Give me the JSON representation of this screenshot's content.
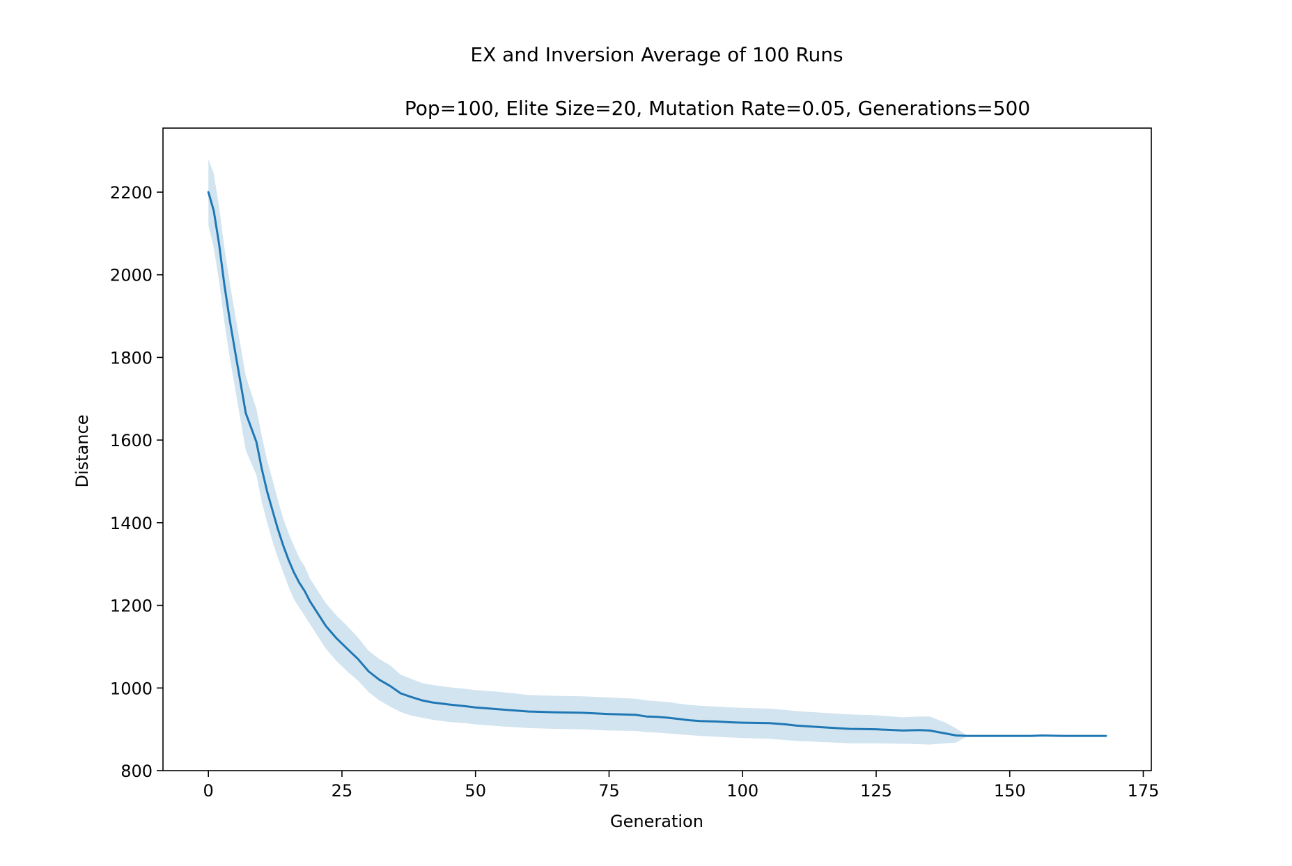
{
  "title": "EX and Inversion Average of 100 Runs",
  "subtitle": "Pop=100, Elite Size=20, Mutation Rate=0.05, Generations=500",
  "chart_data": {
    "type": "line",
    "title": "EX and Inversion Average of 100 Runs",
    "subtitle": "Pop=100, Elite Size=20, Mutation Rate=0.05, Generations=500",
    "xlabel": "Generation",
    "ylabel": "Distance",
    "xlim": [
      -8.5,
      176.5
    ],
    "ylim": [
      800,
      2355
    ],
    "xticks": [
      0,
      25,
      50,
      75,
      100,
      125,
      150,
      175
    ],
    "xtick_labels": [
      "0",
      "25",
      "50",
      "75",
      "100",
      "125",
      "150",
      "175"
    ],
    "yticks": [
      800,
      1000,
      1200,
      1400,
      1600,
      1800,
      2000,
      2200
    ],
    "ytick_labels": [
      "800",
      "1000",
      "1200",
      "1400",
      "1600",
      "1800",
      "2000",
      "2200"
    ],
    "grid": false,
    "colors": {
      "line": "#1f77b4",
      "band": "#1f77b4",
      "band_opacity": 0.2
    },
    "series": [
      {
        "x": [
          0,
          1,
          2,
          3,
          4,
          5,
          6,
          7,
          8,
          9,
          10,
          11,
          12,
          13,
          14,
          15,
          16,
          17,
          18,
          19,
          20,
          22,
          24,
          26,
          28,
          30,
          32,
          34,
          36,
          38,
          40,
          42,
          45,
          48,
          50,
          55,
          60,
          65,
          70,
          75,
          80,
          82,
          84,
          86,
          88,
          90,
          92,
          95,
          98,
          100,
          105,
          108,
          110,
          115,
          120,
          125,
          130,
          133,
          135,
          138,
          140,
          142,
          145,
          150,
          154,
          156,
          160,
          165,
          168
        ],
        "values": [
          2200,
          2155,
          2075,
          1975,
          1890,
          1815,
          1740,
          1665,
          1630,
          1595,
          1530,
          1475,
          1430,
          1385,
          1345,
          1310,
          1280,
          1255,
          1235,
          1210,
          1190,
          1150,
          1120,
          1095,
          1070,
          1040,
          1020,
          1005,
          987,
          978,
          970,
          965,
          960,
          956,
          953,
          948,
          943,
          941,
          940,
          937,
          935,
          931,
          930,
          928,
          925,
          922,
          920,
          919,
          917,
          916,
          915,
          912,
          909,
          905,
          901,
          900,
          897,
          898,
          897,
          890,
          885,
          884,
          884,
          884,
          884,
          885,
          884,
          884,
          884
        ],
        "lower": [
          2120,
          2065,
          1985,
          1885,
          1800,
          1725,
          1650,
          1575,
          1545,
          1515,
          1450,
          1400,
          1355,
          1315,
          1280,
          1245,
          1215,
          1195,
          1175,
          1155,
          1135,
          1095,
          1065,
          1040,
          1018,
          990,
          970,
          955,
          942,
          933,
          928,
          923,
          918,
          915,
          912,
          907,
          903,
          901,
          900,
          897,
          896,
          893,
          892,
          890,
          888,
          886,
          884,
          882,
          880,
          879,
          877,
          874,
          872,
          869,
          866,
          866,
          865,
          864,
          863,
          866,
          868,
          883,
          883,
          883,
          883,
          883,
          883,
          883,
          883
        ],
        "upper": [
          2280,
          2245,
          2165,
          2065,
          1980,
          1905,
          1830,
          1755,
          1715,
          1675,
          1610,
          1550,
          1505,
          1455,
          1410,
          1375,
          1345,
          1315,
          1295,
          1265,
          1245,
          1205,
          1175,
          1150,
          1122,
          1090,
          1070,
          1055,
          1032,
          1022,
          1012,
          1007,
          1002,
          998,
          995,
          990,
          983,
          981,
          980,
          977,
          974,
          970,
          968,
          966,
          962,
          959,
          957,
          955,
          953,
          952,
          950,
          947,
          944,
          940,
          936,
          934,
          929,
          931,
          931,
          916,
          902,
          885,
          885,
          885,
          885,
          887,
          885,
          885,
          885
        ]
      }
    ]
  }
}
